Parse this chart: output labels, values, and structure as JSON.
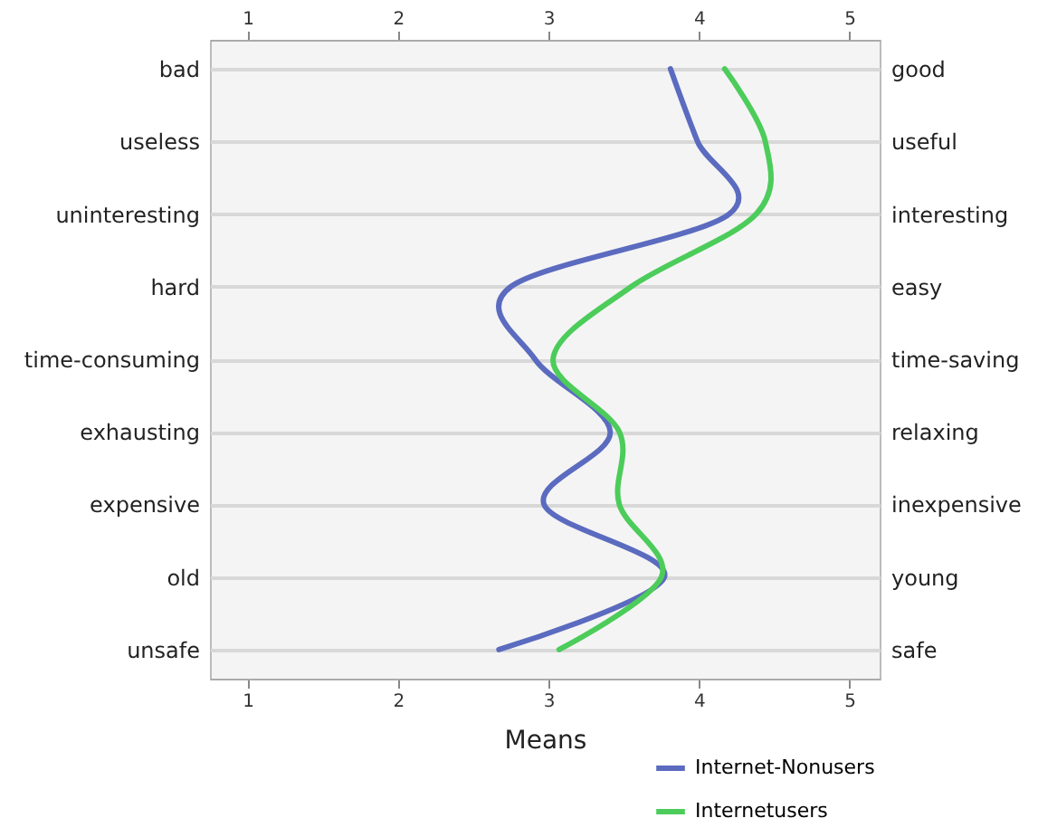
{
  "chart_data": {
    "type": "line",
    "orientation": "horizontal",
    "xlabel": "Means",
    "categories": [
      "bad",
      "useless",
      "uninteresting",
      "hard",
      "time-consuming",
      "exhausting",
      "expensive",
      "old",
      "unsafe"
    ],
    "y2_categories": [
      "good",
      "useful",
      "interesting",
      "easy",
      "time-saving",
      "relaxing",
      "inexpensive",
      "young",
      "safe"
    ],
    "series": [
      {
        "name": "Internet-Nonusers",
        "color": "#5b6bbf",
        "values": [
          3.81,
          3.99,
          4.2,
          2.75,
          2.91,
          3.41,
          2.97,
          3.77,
          2.67
        ]
      },
      {
        "name": "Internetusers",
        "color": "#4ccc5a",
        "values": [
          4.17,
          4.44,
          4.38,
          3.55,
          3.03,
          3.47,
          3.47,
          3.75,
          3.07
        ]
      }
    ],
    "xlim": [
      0.75,
      5.2
    ],
    "xticks": [
      1,
      2,
      3,
      4,
      5
    ],
    "x2lim": [
      0.75,
      5.2
    ],
    "x2ticks": [
      1,
      2,
      3,
      4,
      5
    ],
    "grid": "y",
    "legend": "bottom right",
    "line_style": "solid",
    "marker": "none"
  }
}
